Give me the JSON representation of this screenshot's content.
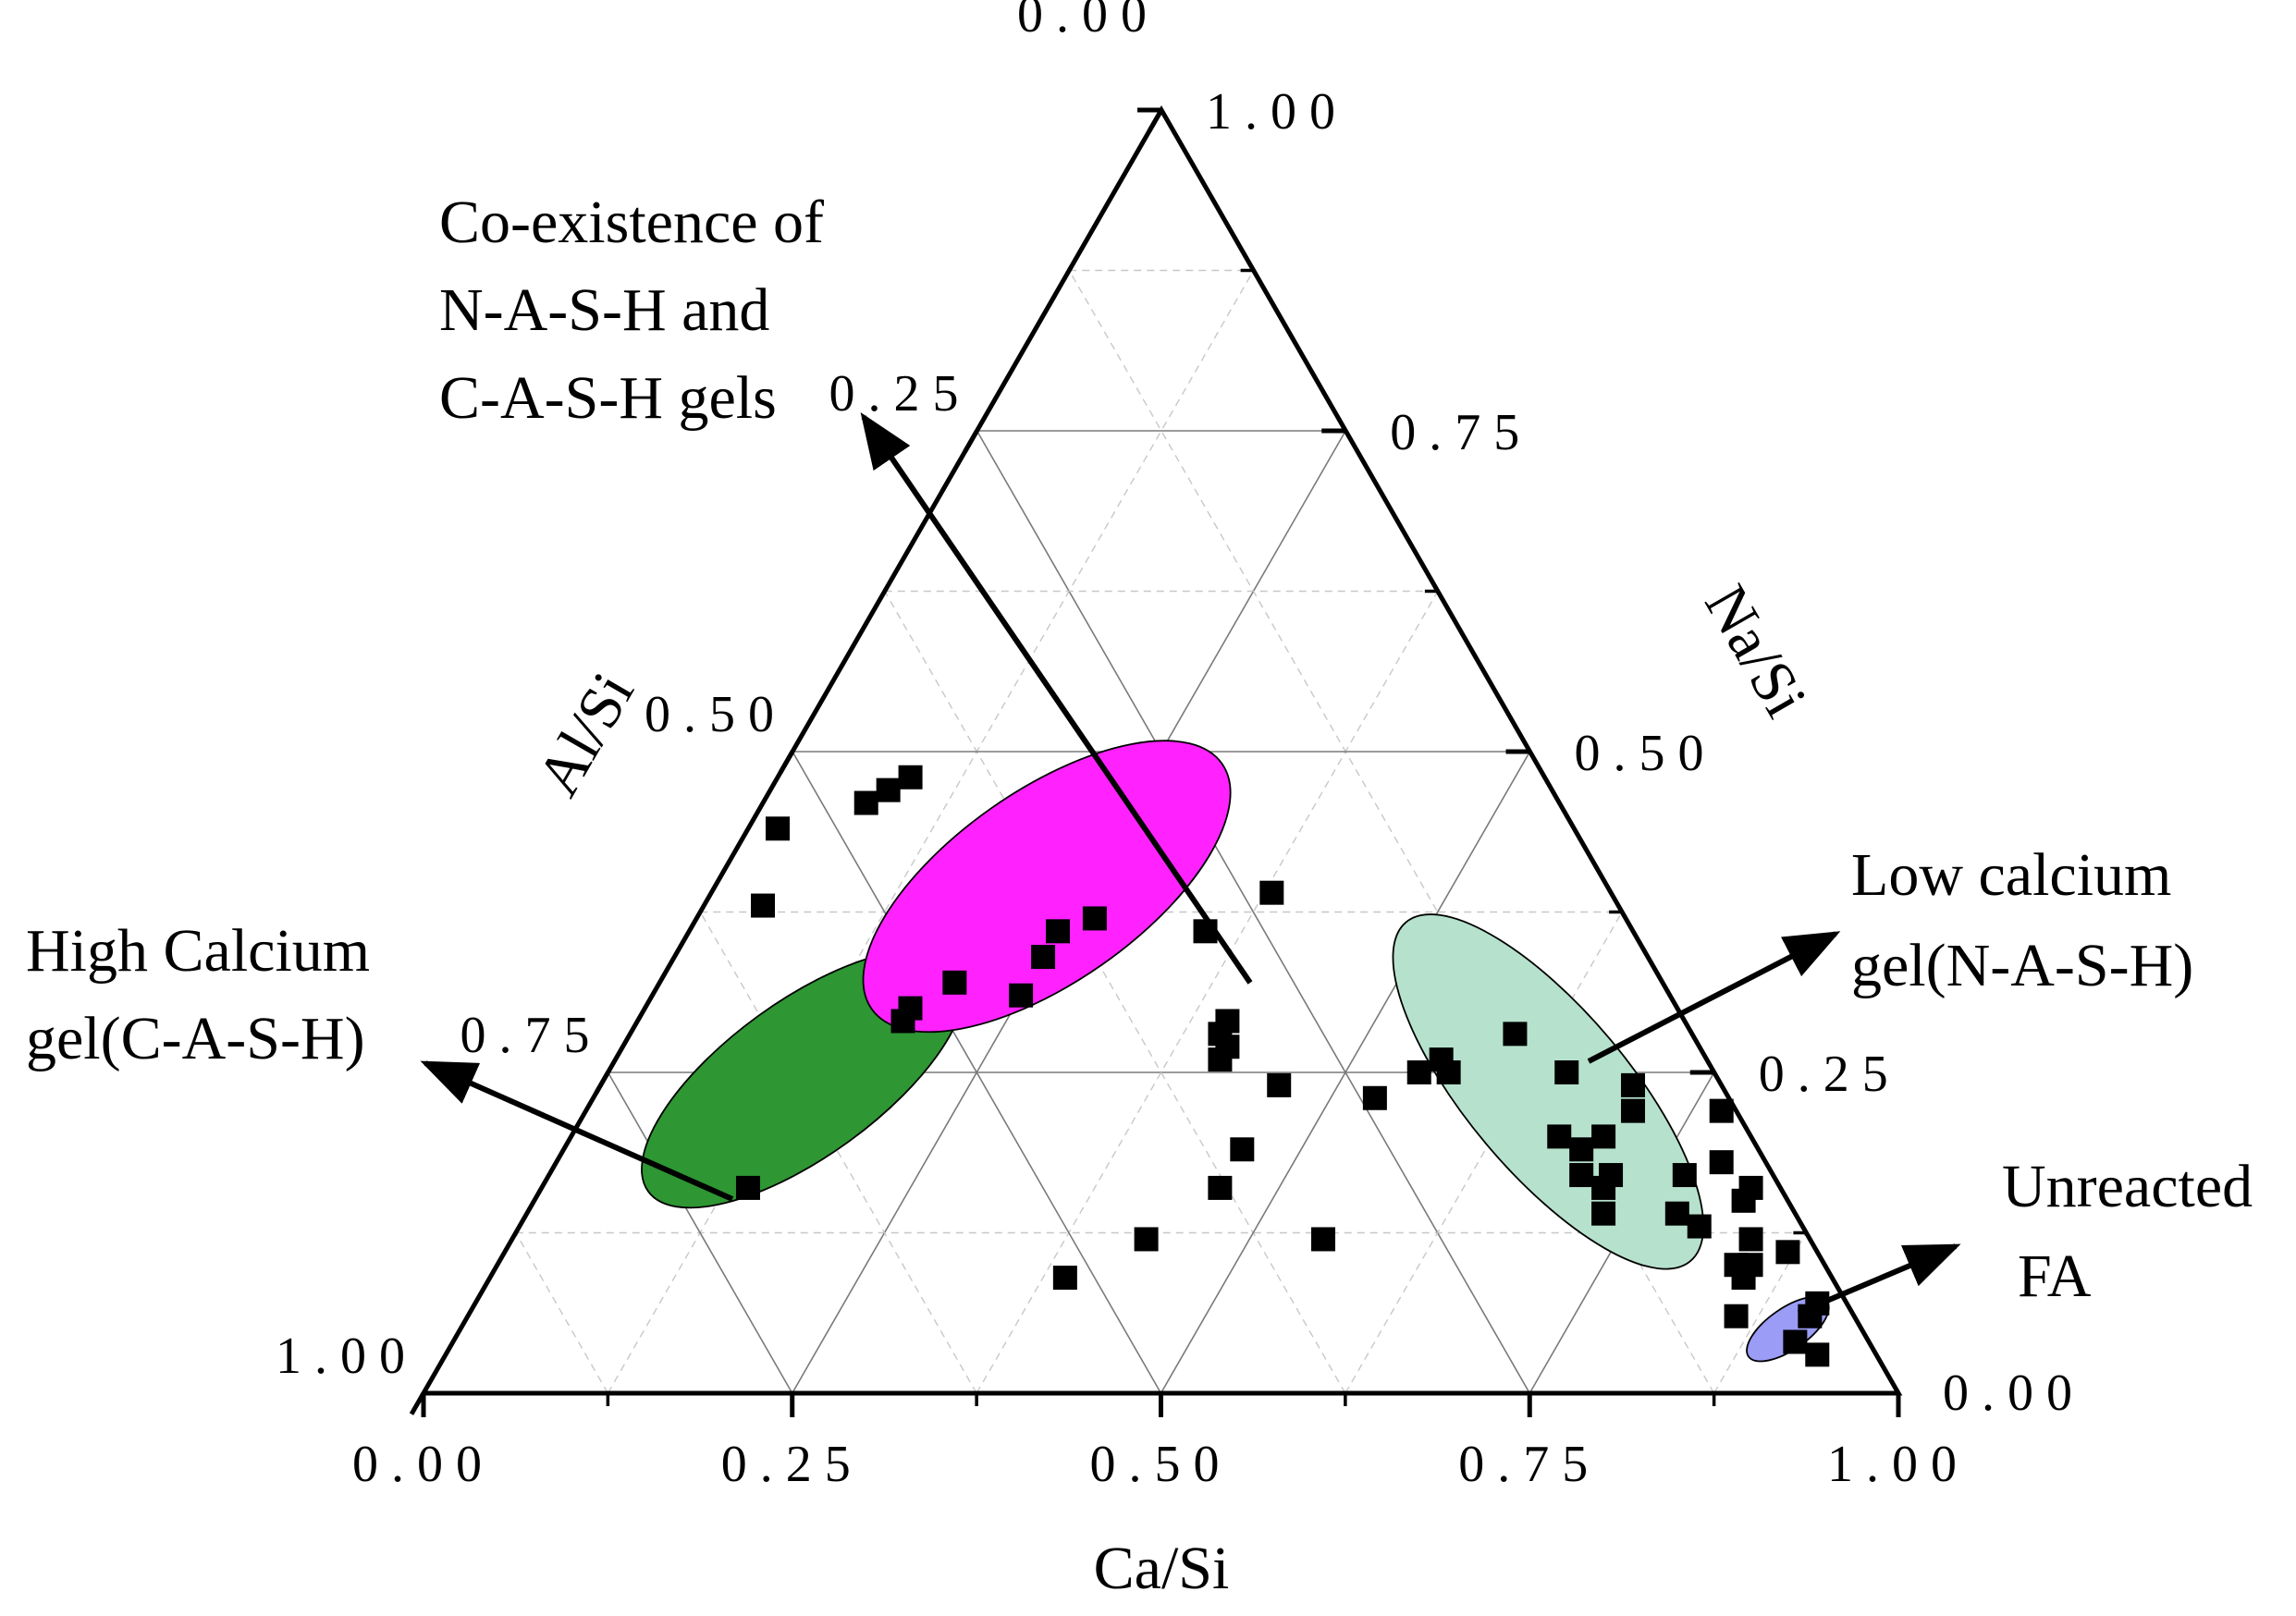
{
  "chart_data": {
    "type": "ternary-scatter",
    "axes": {
      "bottom": {
        "label": "Ca/Si",
        "range": [
          0,
          1
        ],
        "ticks": [
          "0.00",
          "0.25",
          "0.50",
          "0.75",
          "1.00"
        ]
      },
      "left": {
        "label": "Al/Si",
        "range": [
          0,
          1
        ],
        "ticks": [
          "0.00",
          "0.25",
          "0.50",
          "0.75",
          "1.00"
        ]
      },
      "right": {
        "label": "Na/Si",
        "range": [
          0,
          1
        ],
        "ticks": [
          "0.00",
          "0.25",
          "0.50",
          "0.75",
          "1.00"
        ]
      }
    },
    "grid": true,
    "marker": {
      "shape": "square",
      "color": "#000000"
    },
    "regions": [
      {
        "name": "High Calcium gel(C-A-S-H)",
        "color": "#2e9632",
        "center": {
          "ca": 0.245,
          "al": 0.62,
          "na": 0.135
        },
        "semi_axes": [
          0.26,
          0.105
        ],
        "angle_deg": -36
      },
      {
        "name": "Co-existence of N-A-S-H and C-A-S-H gels",
        "color": "#ff22ff",
        "center": {
          "ca": 0.395,
          "al": 0.38,
          "na": 0.225
        },
        "semi_axes": [
          0.29,
          0.13
        ],
        "angle_deg": -35
      },
      {
        "name": "Low calcium gel(N-A-S-H)",
        "color": "#b6e2cd",
        "center": {
          "ca": 0.235,
          "al": 0.12,
          "na": 0.645
        },
        "semi_axes": [
          0.3,
          0.11
        ],
        "angle_deg": 50
      },
      {
        "name": "Unreacted FA",
        "color": "#9a9cf5",
        "center": {
          "ca": 0.05,
          "al": 0.05,
          "na": 0.9
        },
        "semi_axes": [
          0.065,
          0.028
        ],
        "angle_deg": -35
      }
    ],
    "points": [
      {
        "ca": 0.44,
        "al": 0.54,
        "na": 0.02
      },
      {
        "ca": 0.38,
        "al": 0.58,
        "na": 0.04
      },
      {
        "ca": 0.46,
        "al": 0.47,
        "na": 0.07
      },
      {
        "ca": 0.47,
        "al": 0.45,
        "na": 0.08
      },
      {
        "ca": 0.48,
        "al": 0.43,
        "na": 0.09
      },
      {
        "ca": 0.16,
        "al": 0.7,
        "na": 0.14
      },
      {
        "ca": 0.29,
        "al": 0.53,
        "na": 0.18
      },
      {
        "ca": 0.3,
        "al": 0.52,
        "na": 0.18
      },
      {
        "ca": 0.32,
        "al": 0.48,
        "na": 0.2
      },
      {
        "ca": 0.36,
        "al": 0.39,
        "na": 0.25
      },
      {
        "ca": 0.34,
        "al": 0.41,
        "na": 0.25
      },
      {
        "ca": 0.31,
        "al": 0.44,
        "na": 0.25
      },
      {
        "ca": 0.37,
        "al": 0.36,
        "na": 0.27
      },
      {
        "ca": 0.09,
        "al": 0.52,
        "na": 0.39
      },
      {
        "ca": 0.12,
        "al": 0.45,
        "na": 0.43
      },
      {
        "ca": 0.16,
        "al": 0.38,
        "na": 0.46
      },
      {
        "ca": 0.36,
        "al": 0.29,
        "na": 0.35
      },
      {
        "ca": 0.39,
        "al": 0.23,
        "na": 0.38
      },
      {
        "ca": 0.26,
        "al": 0.33,
        "na": 0.41
      },
      {
        "ca": 0.27,
        "al": 0.32,
        "na": 0.41
      },
      {
        "ca": 0.28,
        "al": 0.32,
        "na": 0.4
      },
      {
        "ca": 0.29,
        "al": 0.31,
        "na": 0.4
      },
      {
        "ca": 0.24,
        "al": 0.3,
        "na": 0.46
      },
      {
        "ca": 0.19,
        "al": 0.35,
        "na": 0.46
      },
      {
        "ca": 0.12,
        "al": 0.33,
        "na": 0.55
      },
      {
        "ca": 0.23,
        "al": 0.24,
        "na": 0.53
      },
      {
        "ca": 0.26,
        "al": 0.18,
        "na": 0.56
      },
      {
        "ca": 0.25,
        "al": 0.2,
        "na": 0.55
      },
      {
        "ca": 0.25,
        "al": 0.18,
        "na": 0.57
      },
      {
        "ca": 0.28,
        "al": 0.12,
        "na": 0.6
      },
      {
        "ca": 0.25,
        "al": 0.1,
        "na": 0.65
      },
      {
        "ca": 0.24,
        "al": 0.06,
        "na": 0.7
      },
      {
        "ca": 0.17,
        "al": 0.13,
        "na": 0.7
      },
      {
        "ca": 0.2,
        "al": 0.1,
        "na": 0.7
      },
      {
        "ca": 0.22,
        "al": 0.07,
        "na": 0.71
      },
      {
        "ca": 0.14,
        "al": 0.08,
        "na": 0.78
      },
      {
        "ca": 0.13,
        "al": 0.07,
        "na": 0.8
      },
      {
        "ca": 0.17,
        "al": 0.06,
        "na": 0.77
      },
      {
        "ca": 0.22,
        "al": 0.01,
        "na": 0.77
      },
      {
        "ca": 0.16,
        "al": 0.02,
        "na": 0.82
      },
      {
        "ca": 0.15,
        "al": 0.03,
        "na": 0.82
      },
      {
        "ca": 0.18,
        "al": 0.03,
        "na": 0.79
      },
      {
        "ca": 0.17,
        "al": 0.11,
        "na": 0.72
      },
      {
        "ca": 0.16,
        "al": 0.12,
        "na": 0.72
      },
      {
        "ca": 0.19,
        "al": 0.12,
        "na": 0.69
      },
      {
        "ca": 0.2,
        "al": 0.13,
        "na": 0.67
      },
      {
        "ca": 0.14,
        "al": 0.13,
        "na": 0.73
      },
      {
        "ca": 0.12,
        "al": 0.04,
        "na": 0.84
      },
      {
        "ca": 0.1,
        "al": 0.05,
        "na": 0.85
      },
      {
        "ca": 0.09,
        "al": 0.06,
        "na": 0.85
      },
      {
        "ca": 0.06,
        "al": 0.03,
        "na": 0.91
      },
      {
        "ca": 0.07,
        "al": 0.02,
        "na": 0.91
      },
      {
        "ca": 0.1,
        "al": 0.06,
        "na": 0.84
      },
      {
        "ca": 0.11,
        "al": 0.02,
        "na": 0.87
      },
      {
        "ca": 0.06,
        "al": 0.08,
        "na": 0.86
      },
      {
        "ca": 0.04,
        "al": 0.05,
        "na": 0.91
      },
      {
        "ca": 0.03,
        "al": 0.04,
        "na": 0.93
      }
    ],
    "annotations": [
      {
        "lines": [
          "Co-existence of",
          "N-A-S-H and",
          "C-A-S-H gels"
        ],
        "points_to": "Co-existence of N-A-S-H and C-A-S-H gels"
      },
      {
        "lines": [
          "High Calcium",
          "gel(C-A-S-H)"
        ],
        "points_to": "High Calcium gel(C-A-S-H)"
      },
      {
        "lines": [
          "Low calcium",
          "gel(N-A-S-H)"
        ],
        "points_to": "Low calcium gel(N-A-S-H)"
      },
      {
        "lines": [
          "Unreacted",
          "FA"
        ],
        "points_to": "Unreacted FA"
      }
    ]
  }
}
